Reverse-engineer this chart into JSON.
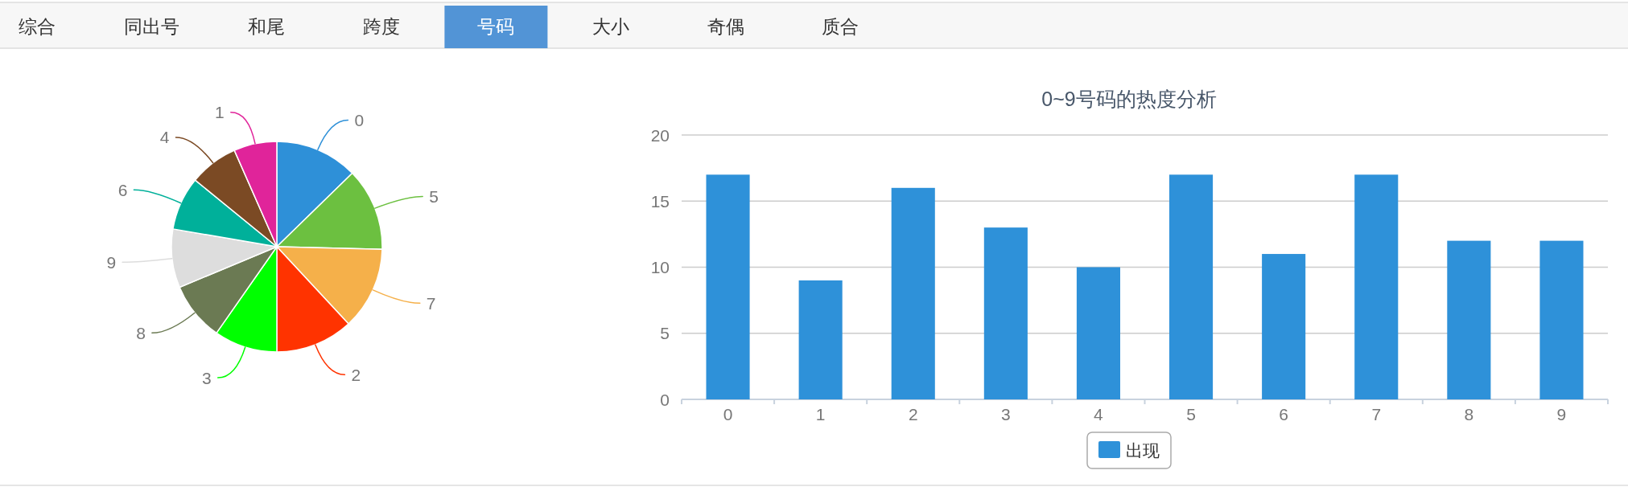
{
  "chart_data": [
    {
      "type": "other",
      "categories": [
        "综合",
        "同出号",
        "和尾",
        "跨度",
        "号码",
        "大小",
        "奇偶",
        "质合"
      ],
      "colors": [
        null,
        null,
        null,
        null,
        "#5294d6",
        null,
        null,
        null
      ]
    },
    {
      "type": "pie",
      "categories": [
        "0",
        "5",
        "7",
        "2",
        "3",
        "8",
        "9",
        "6",
        "4",
        "1"
      ],
      "values": [
        12.7,
        12.7,
        12.7,
        11.9,
        9.7,
        9,
        9,
        8.2,
        7.5,
        6.6
      ],
      "colors": [
        "#2e90d8",
        "#6cc040",
        "#f5b04a",
        "#ff3300",
        "#00ff00",
        "#6b7a53",
        "#dddddd",
        "#00b09a",
        "#7b4a24",
        "#e0249a"
      ]
    },
    {
      "type": "bar",
      "title": "0~9号码的热度分析",
      "categories": [
        "0",
        "1",
        "2",
        "3",
        "4",
        "5",
        "6",
        "7",
        "8",
        "9"
      ],
      "series": [
        {
          "name": "出现",
          "color": "#2e91d9",
          "values": [
            17,
            9,
            16,
            13,
            10,
            17,
            11,
            17,
            12,
            12
          ]
        }
      ],
      "ylim": [
        0,
        20
      ],
      "yticks": [
        0,
        5,
        10,
        15,
        20
      ],
      "grid": "y",
      "legend": "bottom"
    }
  ]
}
